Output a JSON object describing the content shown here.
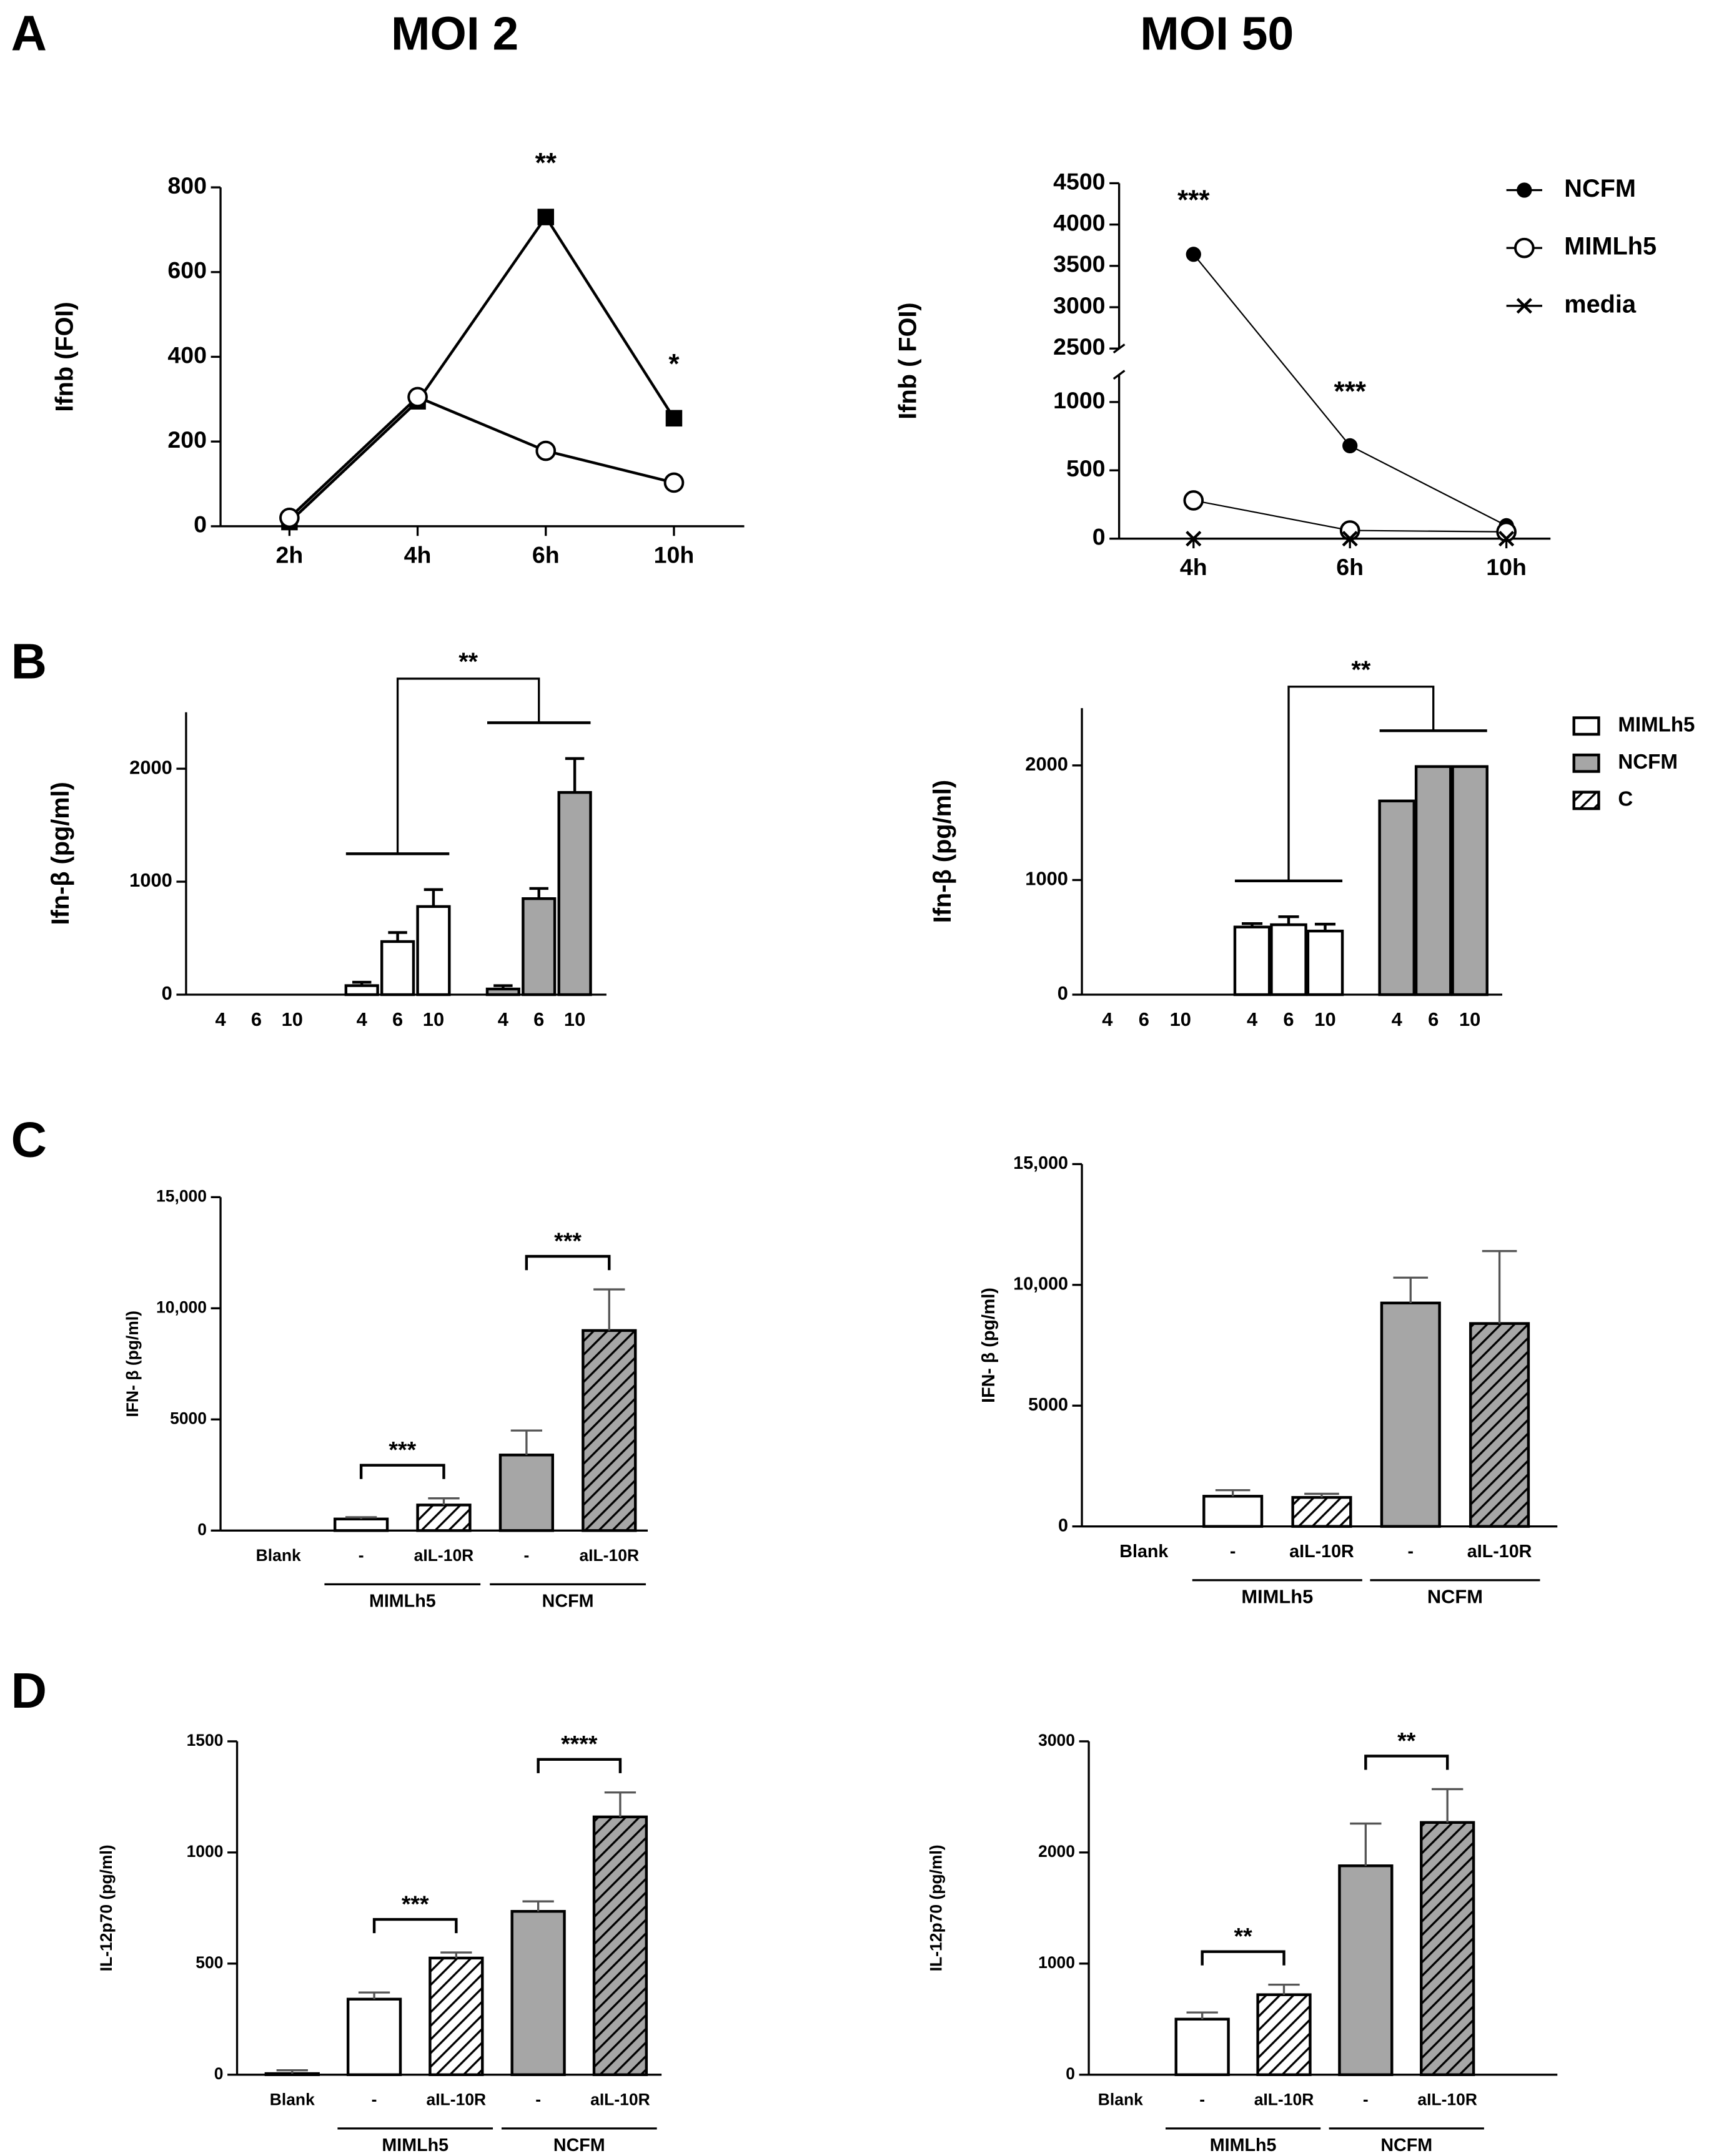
{
  "panels": [
    "A",
    "B",
    "C",
    "D"
  ],
  "columns": [
    "MOI 2",
    "MOI 50"
  ],
  "chart_data": [
    {
      "type": "line",
      "ylabel": "Ifnb (FOI)",
      "categories": [
        "2h",
        "4h",
        "6h",
        "10h"
      ],
      "series": [
        {
          "color": "#000000",
          "marker": "square",
          "values": [
            10,
            295,
            730,
            255
          ]
        },
        {
          "color": "#000000",
          "marker": "circle-open",
          "values": [
            20,
            305,
            178,
            103
          ]
        }
      ],
      "ylim": [
        0,
        800
      ],
      "yticks": [
        0,
        200,
        400,
        600,
        800
      ],
      "annotations": [
        {
          "text": "**",
          "category": 2
        },
        {
          "text": "*",
          "category": 3
        }
      ]
    },
    {
      "type": "line",
      "ylabel": "Ifnb ( FOI)",
      "categories": [
        "4h",
        "6h",
        "10h"
      ],
      "series": [
        {
          "name": "NCFM",
          "color": "#000000",
          "marker": "circle",
          "values": [
            3640,
            680,
            95
          ]
        },
        {
          "name": "MIMLh5",
          "color": "#000000",
          "marker": "circle-open",
          "values": [
            280,
            60,
            50
          ]
        },
        {
          "name": "media",
          "color": "#000000",
          "marker": "x",
          "values": [
            0,
            0,
            0
          ]
        }
      ],
      "ylim": [
        0,
        4500
      ],
      "ybreak": [
        1200,
        2500
      ],
      "yticks": [
        0,
        500,
        1000,
        2500,
        3000,
        3500,
        4000,
        4500
      ],
      "legend": "upper right",
      "annotations": [
        {
          "text": "***",
          "category": 0
        },
        {
          "text": "***",
          "category": 1
        }
      ]
    },
    {
      "type": "grouped_bar",
      "ylabel": "Ifn-β (pg/ml)",
      "categories": [
        "4",
        "6",
        "10"
      ],
      "series": [
        {
          "color": "#ffffff",
          "values": [
            80,
            470,
            780
          ],
          "errors": [
            30,
            80,
            150
          ]
        },
        {
          "color": "#a6a6a6",
          "values": [
            50,
            850,
            1790
          ],
          "errors": [
            30,
            90,
            300
          ]
        },
        {
          "color": "#ffffff",
          "hatched": true,
          "values": [
            0,
            0,
            0
          ]
        }
      ],
      "ylim": [
        0,
        2500
      ],
      "yticks": [
        0,
        1000,
        2000
      ],
      "annotations": [
        {
          "text": "**",
          "between": [
            0,
            1
          ]
        }
      ]
    },
    {
      "type": "grouped_bar",
      "ylabel": "Ifn-β (pg/ml)",
      "categories": [
        "4",
        "6",
        "10"
      ],
      "series": [
        {
          "name": "MIMLh5",
          "color": "#ffffff",
          "values": [
            590,
            610,
            555
          ],
          "errors": [
            30,
            70,
            60
          ]
        },
        {
          "name": "NCFM",
          "color": "#a6a6a6",
          "values": [
            1690,
            1990,
            1990
          ]
        },
        {
          "name": "C",
          "color": "#ffffff",
          "hatched": true,
          "values": [
            0,
            0,
            0
          ]
        }
      ],
      "ylim": [
        0,
        2500
      ],
      "yticks": [
        0,
        1000,
        2000
      ],
      "legend": "upper right",
      "annotations": [
        {
          "text": "**",
          "between": [
            0,
            1
          ]
        }
      ]
    },
    {
      "type": "bar",
      "ylabel": "IFN- β (pg/ml)",
      "categories": [
        "Blank",
        "-",
        "aIL-10R",
        "-",
        "aIL-10R"
      ],
      "values": [
        0,
        520,
        1150,
        3400,
        9000
      ],
      "errors": [
        null,
        80,
        300,
        1100,
        1850
      ],
      "colors": [
        "#ffffff",
        "#ffffff",
        "#ffffff",
        "#a6a6a6",
        "#a6a6a6"
      ],
      "hatched": [
        false,
        false,
        true,
        false,
        true
      ],
      "ylim": [
        0,
        15000
      ],
      "yticks": [
        0,
        5000,
        {
          "value": 10000,
          "label": "10,000"
        },
        {
          "value": 15000,
          "label": "15,000"
        }
      ],
      "groups": [
        {
          "label": "MIMLh5",
          "categories": [
            1,
            2
          ]
        },
        {
          "label": "NCFM",
          "categories": [
            3,
            4
          ]
        }
      ],
      "annotations": [
        {
          "text": "***",
          "between": [
            1,
            2
          ]
        },
        {
          "text": "***",
          "between": [
            3,
            4
          ]
        }
      ]
    },
    {
      "type": "bar",
      "ylabel": "IFN- β (pg/ml)",
      "categories": [
        "Blank",
        "-",
        "aIL-10R",
        "-",
        "aIL-10R"
      ],
      "values": [
        0,
        1250,
        1200,
        9250,
        8400
      ],
      "errors": [
        null,
        250,
        150,
        1050,
        3000
      ],
      "colors": [
        "#ffffff",
        "#ffffff",
        "#ffffff",
        "#a6a6a6",
        "#a6a6a6"
      ],
      "hatched": [
        false,
        false,
        true,
        false,
        true
      ],
      "ylim": [
        0,
        15000
      ],
      "yticks": [
        0,
        5000,
        {
          "value": 10000,
          "label": "10,000"
        },
        {
          "value": 15000,
          "label": "15,000"
        }
      ],
      "groups": [
        {
          "label": "MIMLh5",
          "categories": [
            1,
            2
          ]
        },
        {
          "label": "NCFM",
          "categories": [
            3,
            4
          ]
        }
      ]
    },
    {
      "type": "bar",
      "ylabel": "IL-12p70 (pg/ml)",
      "categories": [
        "Blank",
        "-",
        "aIL-10R",
        "-",
        "aIL-10R"
      ],
      "values": [
        5,
        340,
        525,
        735,
        1160
      ],
      "errors": [
        15,
        30,
        25,
        45,
        110
      ],
      "colors": [
        "#ffffff",
        "#ffffff",
        "#ffffff",
        "#a6a6a6",
        "#a6a6a6"
      ],
      "hatched": [
        false,
        false,
        true,
        false,
        true
      ],
      "ylim": [
        0,
        1500
      ],
      "yticks": [
        0,
        500,
        1000,
        1500
      ],
      "groups": [
        {
          "label": "MIMLh5",
          "categories": [
            1,
            2
          ]
        },
        {
          "label": "NCFM",
          "categories": [
            3,
            4
          ]
        }
      ],
      "annotations": [
        {
          "text": "***",
          "between": [
            1,
            2
          ]
        },
        {
          "text": "****",
          "between": [
            3,
            4
          ]
        }
      ]
    },
    {
      "type": "bar",
      "ylabel": "IL-12p70 (pg/ml)",
      "categories": [
        "Blank",
        "-",
        "aIL-10R",
        "-",
        "aIL-10R"
      ],
      "values": [
        0,
        500,
        720,
        1880,
        2270
      ],
      "errors": [
        null,
        60,
        90,
        380,
        300
      ],
      "colors": [
        "#ffffff",
        "#ffffff",
        "#ffffff",
        "#a6a6a6",
        "#a6a6a6"
      ],
      "hatched": [
        false,
        false,
        true,
        false,
        true
      ],
      "ylim": [
        0,
        3000
      ],
      "yticks": [
        0,
        1000,
        2000,
        3000
      ],
      "groups": [
        {
          "label": "MIMLh5",
          "categories": [
            1,
            2
          ]
        },
        {
          "label": "NCFM",
          "categories": [
            3,
            4
          ]
        }
      ],
      "annotations": [
        {
          "text": "**",
          "between": [
            1,
            2
          ]
        },
        {
          "text": "**",
          "between": [
            3,
            4
          ]
        }
      ]
    }
  ]
}
